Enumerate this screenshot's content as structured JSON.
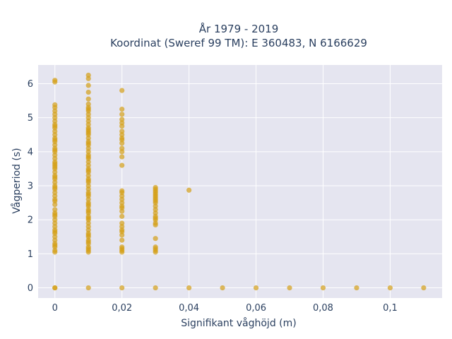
{
  "chart_data": {
    "type": "scatter",
    "title_line1": "År 1979 - 2019",
    "title_line2": "Koordinat (Sweref 99 TM): E 360483, N 6166629",
    "xlabel": "Signifikant våghöjd (m)",
    "ylabel": "Vågperiod (s)",
    "xlim": [
      -0.005,
      0.1155
    ],
    "ylim": [
      -0.3,
      6.55
    ],
    "xticks": [
      0,
      0.02,
      0.04,
      0.06,
      0.08,
      0.1
    ],
    "xtick_labels": [
      "0",
      "0,02",
      "0,04",
      "0,06",
      "0,08",
      "0,1"
    ],
    "yticks": [
      0,
      1,
      2,
      3,
      4,
      5,
      6
    ],
    "ytick_labels": [
      "0",
      "1",
      "2",
      "3",
      "4",
      "5",
      "6"
    ],
    "grid": true,
    "marker_color": "#d4a017",
    "background_color": "#e5e5f0",
    "series": [
      {
        "x": [
          0,
          0,
          0,
          0,
          0,
          0,
          0,
          0,
          0,
          0,
          0,
          0,
          0,
          0,
          0,
          0,
          0,
          0,
          0,
          0,
          0,
          0,
          0,
          0,
          0,
          0,
          0,
          0,
          0,
          0,
          0,
          0,
          0,
          0,
          0,
          0,
          0,
          0,
          0,
          0,
          0,
          0,
          0,
          0,
          0,
          0,
          0,
          0,
          0,
          0,
          0,
          0,
          0,
          0,
          0,
          0,
          0,
          0,
          0,
          0.01,
          0.01,
          0.01,
          0.01,
          0.01,
          0.01,
          0.01,
          0.01,
          0.01,
          0.01,
          0.01,
          0.01,
          0.01,
          0.01,
          0.01,
          0.01,
          0.01,
          0.01,
          0.01,
          0.01,
          0.01,
          0.01,
          0.01,
          0.01,
          0.01,
          0.01,
          0.01,
          0.01,
          0.01,
          0.01,
          0.01,
          0.01,
          0.01,
          0.01,
          0.01,
          0.01,
          0.01,
          0.01,
          0.01,
          0.01,
          0.01,
          0.01,
          0.01,
          0.01,
          0.01,
          0.01,
          0.01,
          0.01,
          0.01,
          0.01,
          0.01,
          0.01,
          0.01,
          0.01,
          0.01,
          0.01,
          0.01,
          0.01,
          0.01,
          0.01,
          0.01,
          0.01,
          0.01,
          0.01,
          0.01,
          0.02,
          0.02,
          0.02,
          0.02,
          0.02,
          0.02,
          0.02,
          0.02,
          0.02,
          0.02,
          0.02,
          0.02,
          0.02,
          0.02,
          0.02,
          0.02,
          0.02,
          0.02,
          0.02,
          0.02,
          0.02,
          0.02,
          0.02,
          0.02,
          0.02,
          0.02,
          0.02,
          0.02,
          0.02,
          0.02,
          0.02,
          0.02,
          0.02,
          0.02,
          0.02,
          0.03,
          0.03,
          0.03,
          0.03,
          0.03,
          0.03,
          0.03,
          0.03,
          0.03,
          0.03,
          0.03,
          0.03,
          0.03,
          0.03,
          0.03,
          0.03,
          0.03,
          0.03,
          0.03,
          0.03,
          0.03,
          0.03,
          0.03,
          0.03,
          0.04,
          0.04,
          0.05,
          0.06,
          0.07,
          0.08,
          0.09,
          0.1,
          0.11
        ],
        "y": [
          0,
          1.05,
          1.1,
          1.2,
          1.3,
          1.4,
          1.5,
          1.6,
          1.7,
          1.8,
          1.9,
          2.0,
          2.1,
          2.2,
          2.3,
          2.45,
          2.55,
          2.7,
          2.8,
          2.9,
          3.0,
          3.1,
          3.2,
          3.3,
          3.4,
          3.5,
          3.6,
          3.7,
          3.8,
          3.9,
          4.0,
          4.1,
          4.2,
          4.3,
          4.4,
          4.5,
          4.6,
          4.7,
          4.8,
          4.9,
          5.0,
          5.1,
          5.2,
          5.3,
          5.38,
          6.05,
          6.1,
          2.6,
          3.65,
          4.05,
          4.35,
          4.75,
          3.25,
          2.15,
          1.65,
          1.25,
          0.0,
          2.95,
          3.55,
          0,
          1.05,
          1.1,
          1.2,
          1.3,
          1.4,
          1.5,
          1.6,
          1.7,
          1.8,
          1.9,
          2.0,
          2.1,
          2.2,
          2.3,
          2.4,
          2.5,
          2.6,
          2.7,
          2.8,
          2.9,
          3.0,
          3.1,
          3.2,
          3.3,
          3.4,
          3.5,
          3.6,
          3.7,
          3.8,
          3.9,
          4.0,
          4.1,
          4.2,
          4.3,
          4.4,
          4.5,
          4.6,
          4.7,
          4.8,
          4.9,
          5.0,
          5.1,
          5.2,
          5.3,
          5.4,
          5.55,
          5.75,
          5.95,
          6.15,
          6.25,
          2.05,
          2.45,
          3.15,
          3.85,
          4.55,
          1.35,
          1.15,
          2.25,
          4.65,
          5.25,
          1.55,
          2.75,
          3.45,
          4.25,
          0,
          1.05,
          1.1,
          1.15,
          1.2,
          1.4,
          1.55,
          1.7,
          1.8,
          1.9,
          2.1,
          2.25,
          2.35,
          2.5,
          2.6,
          2.7,
          2.8,
          2.85,
          3.6,
          3.85,
          4.0,
          4.1,
          4.35,
          4.5,
          4.6,
          4.75,
          4.85,
          4.95,
          5.1,
          5.25,
          5.8,
          1.65,
          2.4,
          4.25,
          4.4,
          0,
          1.05,
          1.1,
          1.2,
          1.45,
          1.85,
          1.9,
          2.0,
          2.1,
          2.2,
          2.3,
          2.4,
          2.5,
          2.6,
          2.7,
          2.75,
          2.8,
          2.85,
          2.9,
          2.95,
          1.15,
          2.05,
          2.55,
          2.65,
          0,
          2.87,
          0,
          0,
          0,
          0,
          0,
          0,
          0
        ]
      }
    ]
  }
}
